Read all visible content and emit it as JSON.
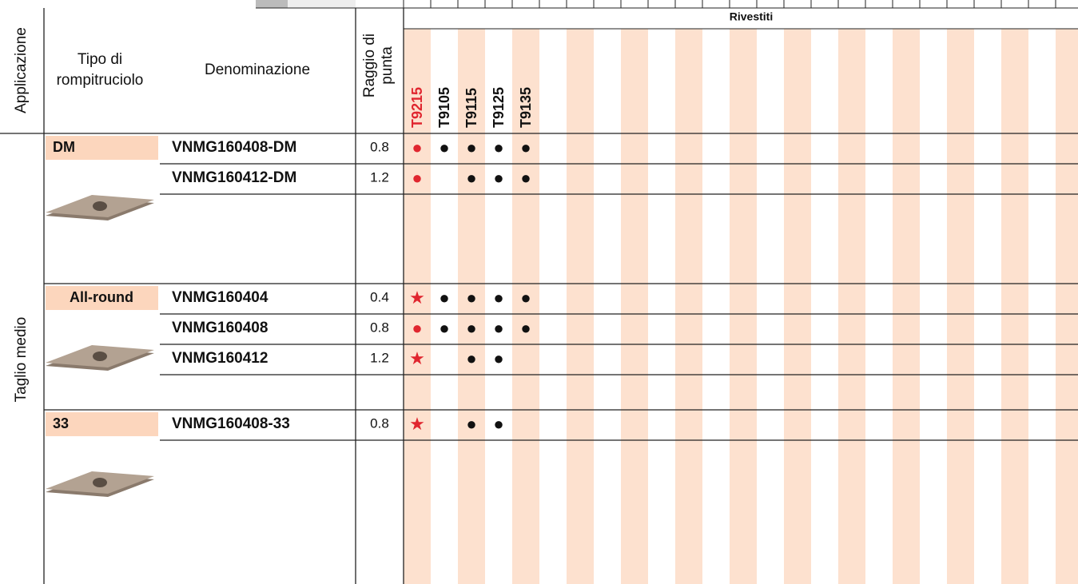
{
  "header": {
    "application": "Applicazione",
    "breaker_type": [
      "Tipo di",
      "rompitruciolo"
    ],
    "designation": "Denominazione",
    "radius": [
      "Raggio di",
      "punta"
    ],
    "coated": "Rivestiti",
    "grades": [
      "T9215",
      "T9105",
      "T9115",
      "T9125",
      "T9135"
    ]
  },
  "application_value": "Taglio medio",
  "groups": [
    {
      "breaker": "DM",
      "rows": [
        {
          "name": "VNMG160408-DM",
          "radius": "0.8",
          "marks": [
            "●",
            "●",
            "●",
            "●",
            "●"
          ]
        },
        {
          "name": "VNMG160412-DM",
          "radius": "1.2",
          "marks": [
            "●",
            null,
            "●",
            "●",
            "●"
          ]
        }
      ]
    },
    {
      "breaker": "All-round",
      "rows": [
        {
          "name": "VNMG160404",
          "radius": "0.4",
          "marks": [
            "★",
            "●",
            "●",
            "●",
            "●"
          ]
        },
        {
          "name": "VNMG160408",
          "radius": "0.8",
          "marks": [
            "●",
            "●",
            "●",
            "●",
            "●"
          ]
        },
        {
          "name": "VNMG160412",
          "radius": "1.2",
          "marks": [
            "★",
            null,
            "●",
            "●",
            null
          ]
        }
      ]
    },
    {
      "breaker": "33",
      "rows": [
        {
          "name": "VNMG160408-33",
          "radius": "0.8",
          "marks": [
            "★",
            null,
            "●",
            "●",
            null
          ]
        }
      ]
    }
  ]
}
